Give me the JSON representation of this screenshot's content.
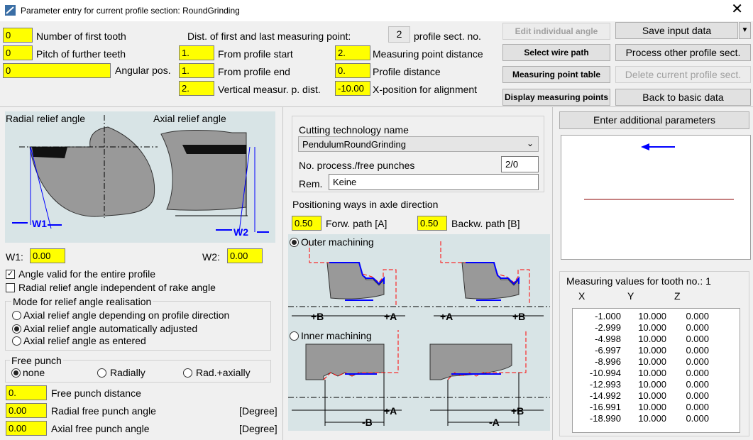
{
  "window": {
    "title": "Parameter entry for current profile section: RoundGrinding",
    "close": "✕"
  },
  "top": {
    "first_tooth_value": "0",
    "first_tooth_label": "Number of first tooth",
    "pitch_value": "0",
    "pitch_label": "Pitch of further teeth",
    "angular_value": "0",
    "angular_label": "Angular pos.",
    "dist_header": "Dist. of first and last measuring point:",
    "from_start_value": "1.",
    "from_start_label": "From profile start",
    "from_end_value": "1.",
    "from_end_label": "From profile end",
    "vertical_value": "2.",
    "vertical_label": "Vertical measur. p. dist.",
    "profile_sect_no": "2",
    "profile_sect_label": "profile sect. no.",
    "meas_dist_value": "2.",
    "meas_dist_label": "Measuring point distance",
    "profile_dist_value": "0.",
    "profile_dist_label": "Profile distance",
    "xpos_value": "-10.00",
    "xpos_label": "X-position for alignment"
  },
  "buttons": {
    "edit_angle": "Edit individual angle",
    "select_wire": "Select wire path",
    "meas_table": "Measuring point table",
    "display_points": "Display measuring points",
    "save": "Save input data",
    "save_arrow": "▼",
    "process_other": "Process other profile sect.",
    "delete_current": "Delete current profile sect.",
    "back": "Back to basic data",
    "enter_additional": "Enter additional parameters"
  },
  "left": {
    "radial_title": "Radial relief angle",
    "axial_title": "Axial relief angle",
    "w1_fig": "W1",
    "w2_fig": "W2",
    "w1_label": "W1:",
    "w1_value": "0.00",
    "w2_label": "W2:",
    "w2_value": "0.00",
    "chk_entire_profile": "Angle valid for the entire profile",
    "chk_entire_mark": "✓",
    "chk_radial_indep": "Radial relief angle independent of rake angle",
    "mode_title": "Mode for relief angle realisation",
    "mode_options": [
      "Axial relief angle depending on profile direction",
      "Axial relief angle automatically adjusted",
      "Axial relief angle as entered"
    ],
    "free_title": "Free punch",
    "free_options": [
      "none",
      "Radially",
      "Rad.+axially"
    ],
    "free_dist_value": "0.",
    "free_dist_label": "Free punch distance",
    "radial_fp_value": "0.00",
    "radial_fp_label": "Radial free punch angle",
    "axial_fp_value": "0.00",
    "axial_fp_label": "Axial free punch angle",
    "degree": "[Degree]"
  },
  "middle": {
    "tech_label": "Cutting technology name",
    "tech_value": "PendulumRoundGrinding",
    "punches_label": "No. process./free punches",
    "punches_value": "2/0",
    "rem_label": "Rem.",
    "rem_value": "Keine",
    "pos_header": "Positioning ways in axle direction",
    "forw_value": "0.50",
    "forw_label": "Forw. path [A]",
    "back_value": "0.50",
    "back_label": "Backw. path [B]",
    "outer_label": "Outer machining",
    "inner_label": "Inner machining",
    "fig_plus_b": "+B",
    "fig_plus_a": "+A",
    "fig_minus_b": "-B",
    "fig_minus_a": "-A"
  },
  "right": {
    "meas_title": "Measuring values for tooth no.: 1",
    "cols": [
      "X",
      "Y",
      "Z"
    ],
    "rows": [
      [
        "-1.000",
        "10.000",
        "0.000"
      ],
      [
        "-2.999",
        "10.000",
        "0.000"
      ],
      [
        "-4.998",
        "10.000",
        "0.000"
      ],
      [
        "-6.997",
        "10.000",
        "0.000"
      ],
      [
        "-8.996",
        "10.000",
        "0.000"
      ],
      [
        "-10.994",
        "10.000",
        "0.000"
      ],
      [
        "-12.993",
        "10.000",
        "0.000"
      ],
      [
        "-14.992",
        "10.000",
        "0.000"
      ],
      [
        "-16.991",
        "10.000",
        "0.000"
      ],
      [
        "-18.990",
        "10.000",
        "0.000"
      ]
    ]
  },
  "colors": {
    "input_yellow": "#ffff00",
    "diagram_bg": "#d8e4e6",
    "blue": "#0000ff",
    "red": "#ff0000"
  }
}
